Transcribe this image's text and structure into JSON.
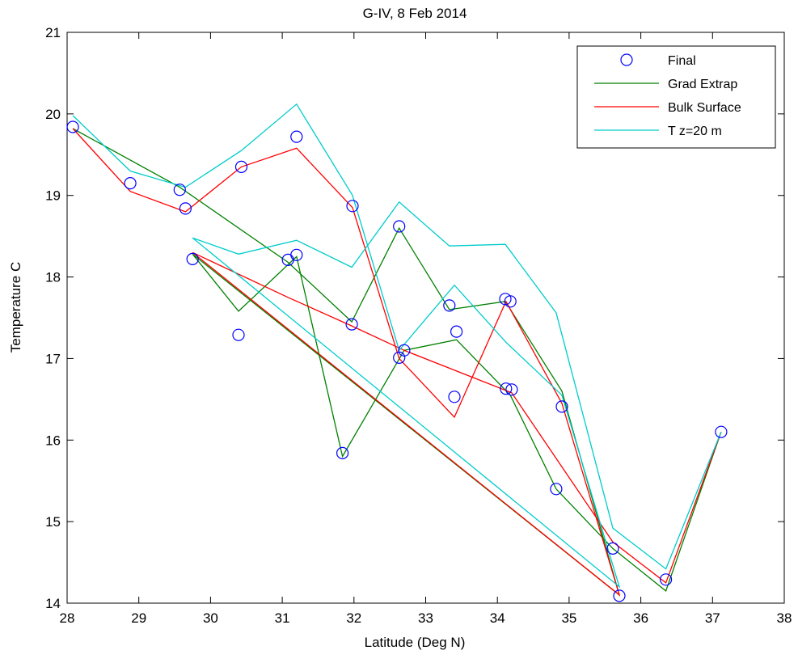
{
  "chart_data": {
    "type": "line",
    "title": "G-IV, 8 Feb 2014",
    "xlabel": "Latitude (Deg N)",
    "ylabel": "Temperature C",
    "xlim": [
      28,
      38
    ],
    "ylim": [
      14,
      21
    ],
    "xticks": [
      "28",
      "29",
      "30",
      "31",
      "32",
      "33",
      "34",
      "35",
      "36",
      "37",
      "38"
    ],
    "yticks": [
      "14",
      "15",
      "16",
      "17",
      "18",
      "19",
      "20",
      "21"
    ],
    "grid": false,
    "legend_position": "top-right",
    "series": [
      {
        "name": "Final",
        "style": "markers",
        "color": "#0000ff",
        "points": [
          [
            28.08,
            19.84
          ],
          [
            28.88,
            19.15
          ],
          [
            29.57,
            19.07
          ],
          [
            29.65,
            18.84
          ],
          [
            29.75,
            18.22
          ],
          [
            30.39,
            17.29
          ],
          [
            30.43,
            19.35
          ],
          [
            31.08,
            18.21
          ],
          [
            31.2,
            18.27
          ],
          [
            31.2,
            19.72
          ],
          [
            31.84,
            15.84
          ],
          [
            31.97,
            17.42
          ],
          [
            31.98,
            18.87
          ],
          [
            32.63,
            17.01
          ],
          [
            32.63,
            18.62
          ],
          [
            32.7,
            17.1
          ],
          [
            33.33,
            17.65
          ],
          [
            33.4,
            16.53
          ],
          [
            33.43,
            17.33
          ],
          [
            34.11,
            17.73
          ],
          [
            34.12,
            16.63
          ],
          [
            34.18,
            17.7
          ],
          [
            34.2,
            16.62
          ],
          [
            34.82,
            15.4
          ],
          [
            34.9,
            16.41
          ],
          [
            35.61,
            14.67
          ],
          [
            35.7,
            14.09
          ],
          [
            36.35,
            14.29
          ],
          [
            37.12,
            16.1
          ]
        ]
      },
      {
        "name": "Grad Extrap",
        "style": "line",
        "color": "#008000",
        "points": [
          [
            28.08,
            19.82
          ],
          [
            29.57,
            19.1
          ],
          [
            31.08,
            18.18
          ],
          [
            31.97,
            17.45
          ],
          [
            32.63,
            18.6
          ],
          [
            33.33,
            17.6
          ],
          [
            34.11,
            17.7
          ],
          [
            34.9,
            16.6
          ],
          [
            35.7,
            14.1
          ],
          [
            29.75,
            18.28
          ],
          [
            30.39,
            17.58
          ],
          [
            31.2,
            18.25
          ],
          [
            31.84,
            15.8
          ],
          [
            32.7,
            17.1
          ],
          [
            33.43,
            17.23
          ],
          [
            34.18,
            16.55
          ],
          [
            34.82,
            15.4
          ],
          [
            35.61,
            14.67
          ],
          [
            36.35,
            14.15
          ],
          [
            37.12,
            16.1
          ]
        ]
      },
      {
        "name": "Bulk Surface",
        "style": "line",
        "color": "#ff0000",
        "points": [
          [
            28.08,
            19.82
          ],
          [
            28.88,
            19.05
          ],
          [
            29.65,
            18.8
          ],
          [
            30.43,
            19.35
          ],
          [
            31.2,
            19.58
          ],
          [
            31.98,
            18.85
          ],
          [
            32.63,
            17.0
          ],
          [
            33.4,
            16.28
          ],
          [
            34.12,
            17.7
          ],
          [
            34.9,
            16.45
          ],
          [
            35.7,
            14.1
          ],
          [
            29.75,
            18.3
          ],
          [
            31.08,
            17.75
          ],
          [
            31.97,
            17.4
          ],
          [
            32.7,
            17.1
          ],
          [
            34.2,
            16.58
          ],
          [
            35.61,
            14.75
          ],
          [
            36.35,
            14.25
          ],
          [
            37.12,
            16.1
          ]
        ]
      },
      {
        "name": "T z=20 m",
        "style": "line",
        "color": "#00cccc",
        "points": [
          [
            28.08,
            19.98
          ],
          [
            28.88,
            19.3
          ],
          [
            29.65,
            19.1
          ],
          [
            30.43,
            19.55
          ],
          [
            31.2,
            20.12
          ],
          [
            31.98,
            19.0
          ],
          [
            32.63,
            17.1
          ],
          [
            33.4,
            17.9
          ],
          [
            34.12,
            17.2
          ],
          [
            34.9,
            16.55
          ],
          [
            35.7,
            14.2
          ],
          [
            29.75,
            18.48
          ],
          [
            30.39,
            18.28
          ],
          [
            31.2,
            18.45
          ],
          [
            31.97,
            18.12
          ],
          [
            32.63,
            18.92
          ],
          [
            33.33,
            18.38
          ],
          [
            34.11,
            18.4
          ],
          [
            34.82,
            17.56
          ],
          [
            35.61,
            14.92
          ],
          [
            36.35,
            14.42
          ],
          [
            37.12,
            16.1
          ]
        ]
      }
    ]
  }
}
